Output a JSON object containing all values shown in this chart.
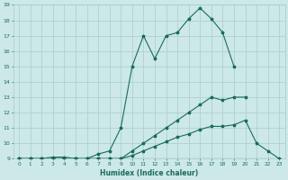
{
  "xlabel": "Humidex (Indice chaleur)",
  "xlim": [
    -0.5,
    23.5
  ],
  "ylim": [
    9,
    19
  ],
  "xticks": [
    0,
    1,
    2,
    3,
    4,
    5,
    6,
    7,
    8,
    9,
    10,
    11,
    12,
    13,
    14,
    15,
    16,
    17,
    18,
    19,
    20,
    21,
    22,
    23
  ],
  "yticks": [
    9,
    10,
    11,
    12,
    13,
    14,
    15,
    16,
    17,
    18,
    19
  ],
  "bg_color": "#cce8e8",
  "grid_color": "#aacccc",
  "line_color": "#1a6b5a",
  "lines": [
    {
      "x": [
        0,
        1,
        2,
        3,
        4,
        5,
        6,
        7,
        8,
        9,
        10,
        11,
        12,
        13,
        14,
        15,
        16,
        17,
        18,
        19,
        20,
        21,
        22,
        23
      ],
      "y": [
        9,
        9,
        9,
        9,
        9,
        9,
        9,
        9,
        9,
        9,
        9,
        9,
        9,
        9,
        9,
        9,
        9,
        9,
        9,
        9,
        9,
        9,
        9,
        9
      ],
      "marker": false
    },
    {
      "x": [
        0,
        1,
        2,
        3,
        4,
        5,
        6,
        7,
        8,
        9,
        10,
        11,
        12,
        13,
        14,
        15,
        16,
        17,
        18,
        19,
        20,
        21,
        22,
        23
      ],
      "y": [
        9,
        9,
        9,
        9,
        9,
        9,
        9,
        9,
        9,
        9,
        9.2,
        9.5,
        9.8,
        10.1,
        10.4,
        10.6,
        10.9,
        11.1,
        11.1,
        11.2,
        11.5,
        10.0,
        9.5,
        9.0
      ],
      "marker": true
    },
    {
      "x": [
        0,
        1,
        2,
        3,
        4,
        5,
        6,
        7,
        8,
        9,
        10,
        11,
        12,
        13,
        14,
        15,
        16,
        17,
        18,
        19,
        20,
        21,
        22,
        23
      ],
      "y": [
        9,
        9,
        9,
        9,
        9,
        9,
        9,
        9,
        9,
        9,
        9.5,
        10,
        10.5,
        11,
        11.5,
        12,
        12.5,
        13,
        12.8,
        13.0,
        13.0,
        null,
        null,
        null
      ],
      "marker": true
    },
    {
      "x": [
        0,
        1,
        2,
        3,
        4,
        5,
        6,
        7,
        8,
        9,
        10,
        11,
        12,
        13,
        14,
        15,
        16,
        17,
        18,
        19,
        20,
        21,
        22,
        23
      ],
      "y": [
        9,
        9,
        9,
        9.1,
        9.1,
        9,
        9,
        9.3,
        9.5,
        11,
        15.0,
        17.0,
        15.5,
        17.0,
        17.2,
        18.1,
        18.8,
        18.1,
        17.2,
        15.0,
        null,
        null,
        null,
        null
      ],
      "marker": true
    }
  ]
}
